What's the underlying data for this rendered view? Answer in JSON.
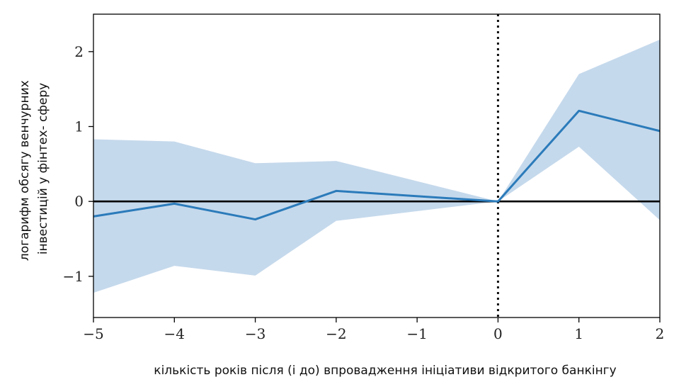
{
  "chart_data": {
    "type": "line",
    "title": "",
    "xlabel": "кількість років після (і до) впровадження ініціативи відкритого банкінгу",
    "ylabel_lines": [
      "логарифм обсягу венчурних",
      "інвестицій у фінтех- сферу"
    ],
    "xlim": [
      -5,
      2
    ],
    "ylim": [
      -1.55,
      2.5
    ],
    "x_ticks": [
      -5,
      -4,
      -3,
      -2,
      -1,
      0,
      1,
      2
    ],
    "x_tick_labels": [
      "−5",
      "−4",
      "−3",
      "−2",
      "−1",
      "0",
      "1",
      "2"
    ],
    "y_ticks": [
      -1,
      0,
      1,
      2
    ],
    "y_tick_labels": [
      "−1",
      "0",
      "1",
      "2"
    ],
    "grid": false,
    "reference_lines": {
      "horizontal_y": 0,
      "vertical_x": 0,
      "vertical_style": "dotted"
    },
    "series": [
      {
        "x": [
          -5,
          -4,
          -3,
          -2,
          0,
          1,
          2
        ],
        "y": [
          -0.2,
          -0.03,
          -0.24,
          0.14,
          0.0,
          1.21,
          0.94
        ],
        "lower": [
          -1.22,
          -0.86,
          -0.99,
          -0.26,
          0.0,
          0.73,
          -0.25
        ],
        "upper": [
          0.83,
          0.8,
          0.51,
          0.54,
          0.0,
          1.7,
          2.16
        ]
      }
    ],
    "colors": {
      "line": "#2b7bba",
      "band": "#c5d9ec",
      "zero_line": "#000000",
      "frame": "#000000"
    }
  }
}
